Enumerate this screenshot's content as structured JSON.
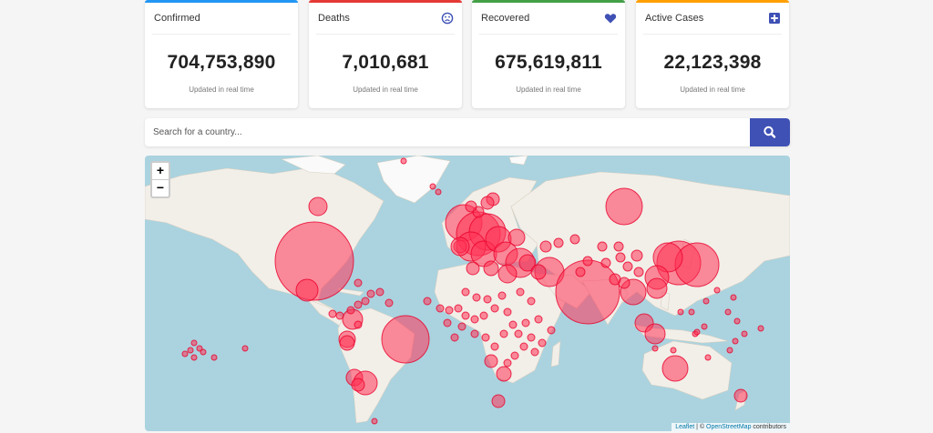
{
  "cards": [
    {
      "title": "Confirmed",
      "value": "704,753,890",
      "note": "Updated in real time",
      "accent": "#2196f3",
      "icon": "none"
    },
    {
      "title": "Deaths",
      "value": "7,010,681",
      "note": "Updated in real time",
      "accent": "#e53935",
      "icon": "sad-face-icon"
    },
    {
      "title": "Recovered",
      "value": "675,619,811",
      "note": "Updated in real time",
      "accent": "#43a047",
      "icon": "heart-icon"
    },
    {
      "title": "Active Cases",
      "value": "22,123,398",
      "note": "Updated in real time",
      "accent": "#ffa000",
      "icon": "plus-square-icon"
    }
  ],
  "search": {
    "placeholder": "Search for a country...",
    "button_icon": "search-icon",
    "button_color": "#3f51b5"
  },
  "map": {
    "zoom_in": "+",
    "zoom_out": "−",
    "attribution": {
      "leaflet": "Leaflet",
      "separator": " | © ",
      "osm": "OpenStreetMap",
      "suffix": " contributors"
    },
    "colors": {
      "water": "#aad3df",
      "land": "#f2efe9",
      "ice": "#ffffff",
      "circle": "#ff3355"
    }
  }
}
